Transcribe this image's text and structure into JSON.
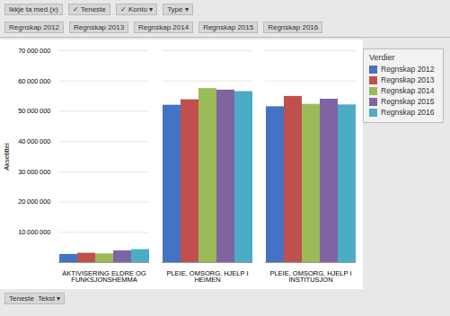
{
  "chart_data": {
    "type": "bar",
    "categories": [
      "AKTIVISERING ELDRE OG\nFUNKSJONSHEMMA",
      "PLEIE, OMSORG, HJELP I\nHEIMEN",
      "PLEIE, OMSORG, HJELP I\nINSTITUSJON"
    ],
    "series": [
      {
        "name": "Regnskap 2012",
        "color": "#4472C4",
        "values": [
          2700000,
          52000000,
          51500000
        ]
      },
      {
        "name": "Regnskap 2013",
        "color": "#C0504D",
        "values": [
          3100000,
          53800000,
          54900000
        ]
      },
      {
        "name": "Regnskap 2014",
        "color": "#9BBB59",
        "values": [
          2900000,
          57500000,
          52300000
        ]
      },
      {
        "name": "Regnskap 2015",
        "color": "#8064A2",
        "values": [
          3900000,
          57000000,
          54000000
        ]
      },
      {
        "name": "Regnskap 2016",
        "color": "#4BACC6",
        "values": [
          4300000,
          56500000,
          52100000
        ]
      }
    ],
    "ylabel": "Aksetittel",
    "ylim": [
      0,
      70000000
    ],
    "yticks": [
      {
        "value": 0,
        "label": ""
      },
      {
        "value": 10000000,
        "label": "10 000 000"
      },
      {
        "value": 20000000,
        "label": "20 000 000"
      },
      {
        "value": 30000000,
        "label": "30 000 000"
      },
      {
        "value": 40000000,
        "label": "40 000 000"
      },
      {
        "value": 50000000,
        "label": "50 000 000"
      },
      {
        "value": 60000000,
        "label": "60 000 000"
      },
      {
        "value": 70000000,
        "label": "70 000 000"
      }
    ],
    "grid": true,
    "legend": "right",
    "legend_title": "Verdier",
    "annotations": [
      [
        "Ikkje ta med (x)",
        "✓ Teneste",
        "✓ Konto ▾",
        "Type ▾"
      ],
      [
        "Regnskap 2012",
        "Regnskap 2013",
        "Regnskap 2014",
        "Regnskap 2015",
        "Regnskap 2016"
      ],
      [
        "Teneste  Tekst ▾"
      ]
    ]
  }
}
